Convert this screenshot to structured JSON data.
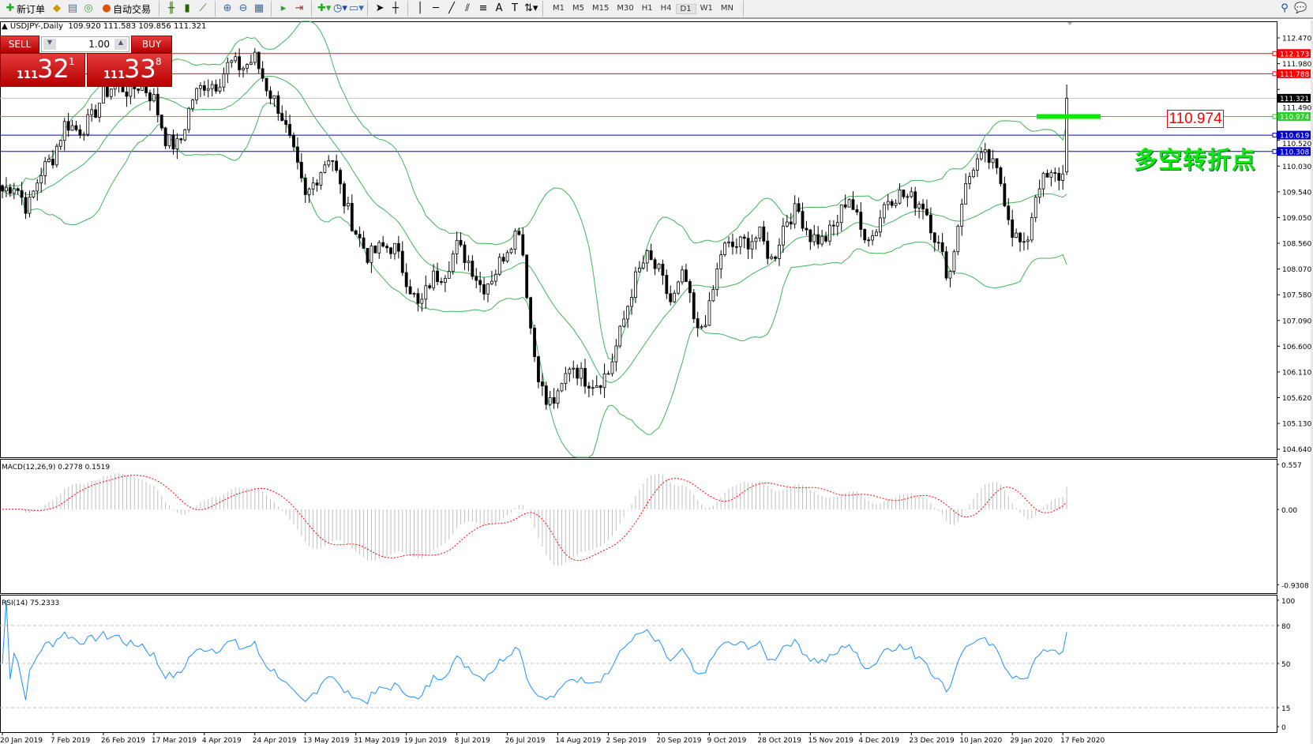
{
  "toolbar": {
    "new_order": "新订单",
    "auto_trading": "自动交易",
    "timeframes": [
      "M1",
      "M5",
      "M15",
      "M30",
      "H1",
      "H4",
      "D1",
      "W1",
      "MN"
    ],
    "active_timeframe": "D1",
    "icons": [
      "new-order-icon",
      "history-icon",
      "navigator-icon",
      "signal-icon",
      "auto-trading-icon",
      "bar-chart-icon",
      "candle-chart-icon",
      "line-chart-icon",
      "zoom-in-icon",
      "zoom-out-icon",
      "tile-icon",
      "autoscroll-icon",
      "chart-shift-icon",
      "indicators-icon",
      "periods-icon",
      "templates-icon",
      "cursor-icon",
      "crosshair-icon",
      "vertical-line-icon",
      "horizontal-line-icon",
      "trendline-icon",
      "channel-icon",
      "fibonacci-icon",
      "text-icon",
      "text-label-icon",
      "arrows-icon",
      "search-icon",
      "chat-icon"
    ]
  },
  "header": {
    "symbol": "USDJPY-,Daily",
    "ohlc": "109.920 111.583 109.856 111.321"
  },
  "trade_panel": {
    "sell_label": "SELL",
    "buy_label": "BUY",
    "lot": "1.00",
    "sell_big": "111",
    "sell_main": "32",
    "sell_sup": "1",
    "buy_big": "111",
    "buy_main": "33",
    "buy_sup": "8"
  },
  "annotations": {
    "price_box": "110.974",
    "text": "多空转折点"
  },
  "colors": {
    "bollinger": "#3fb45a",
    "resistance": "#ff0000",
    "support": "#0000cc",
    "pivot": "#33cc33",
    "macd_hist": "#c0c0c0",
    "macd_signal": "#ff0000",
    "rsi": "#1e90ff",
    "annotation_text": "#11e611"
  },
  "chart_data": [
    {
      "type": "candlestick",
      "title": "USDJPY-,Daily",
      "indicator": "Bollinger Bands",
      "ylim": [
        104.64,
        112.6
      ],
      "price_ticks": [
        "112.470",
        "111.980",
        "111.490",
        "110.520",
        "110.030",
        "109.540",
        "109.050",
        "108.560",
        "108.070",
        "107.580",
        "107.090",
        "106.600",
        "106.110",
        "105.620",
        "105.130",
        "104.640"
      ],
      "date_ticks": [
        "20 Jan 2019",
        "7 Feb 2019",
        "26 Feb 2019",
        "17 Mar 2019",
        "4 Apr 2019",
        "24 Apr 2019",
        "13 May 2019",
        "31 May 2019",
        "19 Jun 2019",
        "8 Jul 2019",
        "26 Jul 2019",
        "14 Aug 2019",
        "2 Sep 2019",
        "20 Sep 2019",
        "9 Oct 2019",
        "28 Oct 2019",
        "15 Nov 2019",
        "4 Dec 2019",
        "23 Dec 2019",
        "10 Jan 2020",
        "29 Jan 2020",
        "17 Feb 2020"
      ],
      "approx_close_keypoints": [
        109.56,
        109.7,
        109.2,
        109.9,
        110.2,
        110.87,
        110.7,
        110.9,
        111.4,
        111.6,
        111.45,
        111.6,
        111.3,
        110.5,
        110.4,
        111.3,
        111.6,
        111.6,
        112.0,
        111.9,
        112.08,
        111.5,
        111.1,
        110.3,
        109.4,
        109.87,
        110.3,
        109.4,
        108.78,
        108.3,
        108.47,
        108.5,
        107.9,
        107.3,
        107.9,
        108.0,
        108.5,
        108.2,
        107.7,
        108.0,
        108.5,
        108.9,
        106.6,
        105.5,
        105.6,
        106.3,
        106.0,
        105.9,
        106.1,
        106.9,
        107.8,
        108.3,
        108.0,
        107.4,
        108.0,
        106.8,
        107.3,
        108.47,
        108.5,
        108.6,
        108.7,
        108.2,
        109.0,
        109.2,
        108.7,
        108.6,
        108.9,
        109.5,
        108.8,
        108.7,
        109.4,
        109.5,
        109.4,
        109.3,
        108.6,
        107.9,
        109.4,
        110.1,
        110.2,
        109.8,
        108.8,
        108.4,
        109.7,
        109.8,
        109.85
      ],
      "last_bar": {
        "open": 109.92,
        "high": 111.583,
        "low": 109.856,
        "close": 111.321
      },
      "levels": [
        {
          "price": "112.173",
          "kind": "resistance"
        },
        {
          "price": "111.788",
          "kind": "resistance"
        },
        {
          "price": "111.321",
          "kind": "current"
        },
        {
          "price": "110.974",
          "kind": "pivot"
        },
        {
          "price": "110.619",
          "kind": "support"
        },
        {
          "price": "110.308",
          "kind": "support"
        }
      ]
    },
    {
      "type": "bar+line",
      "label": "MACD(12,26,9) 0.2778 0.1519",
      "ticks": [
        "0.557",
        "0.00",
        "-0.9308"
      ],
      "ylim": [
        -0.9308,
        0.557
      ]
    },
    {
      "type": "line",
      "label": "RSI(14) 75.2333",
      "ticks": [
        "100",
        "80",
        "50",
        "15",
        "0"
      ],
      "ylim": [
        0,
        100
      ],
      "levels": [
        80,
        50,
        15
      ]
    }
  ]
}
